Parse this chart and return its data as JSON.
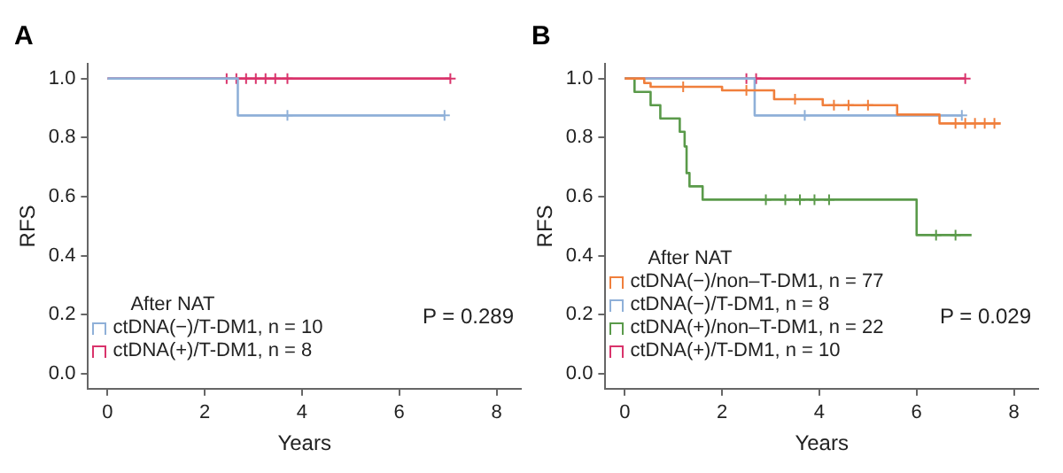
{
  "chart_data": [
    {
      "type": "step",
      "title": "A",
      "xlabel": "Years",
      "ylabel": "RFS",
      "legend": "bottom left",
      "legend_title": "After NAT",
      "grid": false,
      "xlim": [
        -0.4,
        8.5
      ],
      "xticks": [
        0,
        2,
        4,
        6,
        8
      ],
      "ylim": [
        -0.05,
        1.05
      ],
      "yticks": [
        {
          "value": 0,
          "label": "0.0"
        },
        {
          "value": 0.2,
          "label": "0.2"
        },
        {
          "value": 0.4,
          "label": "0.4"
        },
        {
          "value": 0.6,
          "label": "0.6"
        },
        {
          "value": 0.8,
          "label": "0.8"
        },
        {
          "value": 1,
          "label": "1.0"
        }
      ],
      "annotations": [
        "P = 0.289"
      ],
      "series": [
        {
          "name": "ctDNA(−)/T-DM1, n = 10",
          "color": "#8fb0d8",
          "x": [
            0,
            2.68,
            6.93
          ],
          "values": [
            1,
            0.875,
            0.875
          ]
        },
        {
          "name": "ctDNA(+)/T-DM1, n = 8",
          "color": "#d9336b",
          "x": [
            0,
            7.05
          ],
          "values": [
            1,
            1
          ]
        },
        {
          "type": "scatter",
          "marker": "cross",
          "color": "#8fb0d8",
          "x": [
            3.7,
            6.93
          ],
          "values": [
            0.875,
            0.875
          ]
        },
        {
          "type": "scatter",
          "marker": "cross",
          "color": "#d9336b",
          "x": [
            2.45,
            2.65,
            2.85,
            3.05,
            3.25,
            3.45,
            3.7,
            7.05
          ],
          "values": [
            1,
            1,
            1,
            1,
            1,
            1,
            1,
            1
          ]
        }
      ]
    },
    {
      "type": "step",
      "title": "B",
      "xlabel": "Years",
      "ylabel": "RFS",
      "legend": "bottom left",
      "legend_title": "After NAT",
      "grid": false,
      "xlim": [
        -0.4,
        8.5
      ],
      "xticks": [
        0,
        2,
        4,
        6,
        8
      ],
      "ylim": [
        -0.05,
        1.05
      ],
      "yticks": [
        {
          "value": 0,
          "label": "0.0"
        },
        {
          "value": 0.2,
          "label": "0.2"
        },
        {
          "value": 0.4,
          "label": "0.4"
        },
        {
          "value": 0.6,
          "label": "0.6"
        },
        {
          "value": 0.8,
          "label": "0.8"
        },
        {
          "value": 1,
          "label": "1.0"
        }
      ],
      "annotations": [
        "P = 0.029"
      ],
      "series": [
        {
          "name": "ctDNA(−)/non–T-DM1, n = 77",
          "color": "#f07f3c",
          "x": [
            0,
            0.4,
            0.53,
            2.0,
            3.07,
            4.07,
            5.6,
            6.47,
            7.73
          ],
          "values": [
            1,
            0.985,
            0.972,
            0.96,
            0.93,
            0.91,
            0.878,
            0.848,
            0.848
          ]
        },
        {
          "name": "ctDNA(−)/T-DM1, n = 8",
          "color": "#8fb0d8",
          "x": [
            0,
            2.67,
            6.93
          ],
          "values": [
            1,
            0.875,
            0.875
          ]
        },
        {
          "name": "ctDNA(+)/non–T-DM1, n = 22",
          "color": "#5a9a4a",
          "x": [
            0,
            0.2,
            0.53,
            0.73,
            1.13,
            1.23,
            1.27,
            1.33,
            1.6,
            6.0,
            7.13
          ],
          "values": [
            1,
            0.955,
            0.91,
            0.865,
            0.82,
            0.77,
            0.68,
            0.635,
            0.59,
            0.47,
            0.47
          ]
        },
        {
          "name": "ctDNA(+)/T-DM1, n = 10",
          "color": "#d9336b",
          "x": [
            0,
            7.0
          ],
          "values": [
            1,
            1
          ]
        },
        {
          "type": "scatter",
          "marker": "cross",
          "color": "#f07f3c",
          "x": [
            1.2,
            2.5,
            3.5,
            4.3,
            4.6,
            5.0,
            6.8,
            7.0,
            7.2,
            7.4,
            7.6
          ],
          "values": [
            0.972,
            0.96,
            0.93,
            0.91,
            0.91,
            0.91,
            0.848,
            0.848,
            0.848,
            0.848,
            0.848
          ]
        },
        {
          "type": "scatter",
          "marker": "cross",
          "color": "#8fb0d8",
          "x": [
            3.7,
            6.93
          ],
          "values": [
            0.875,
            0.875
          ]
        },
        {
          "type": "scatter",
          "marker": "cross",
          "color": "#5a9a4a",
          "x": [
            2.9,
            3.3,
            3.6,
            3.9,
            4.2,
            6.4,
            6.8
          ],
          "values": [
            0.59,
            0.59,
            0.59,
            0.59,
            0.59,
            0.47,
            0.47
          ]
        },
        {
          "type": "scatter",
          "marker": "cross",
          "color": "#d9336b",
          "x": [
            2.5,
            2.7,
            7.0
          ],
          "values": [
            1,
            1,
            1
          ]
        }
      ]
    }
  ]
}
